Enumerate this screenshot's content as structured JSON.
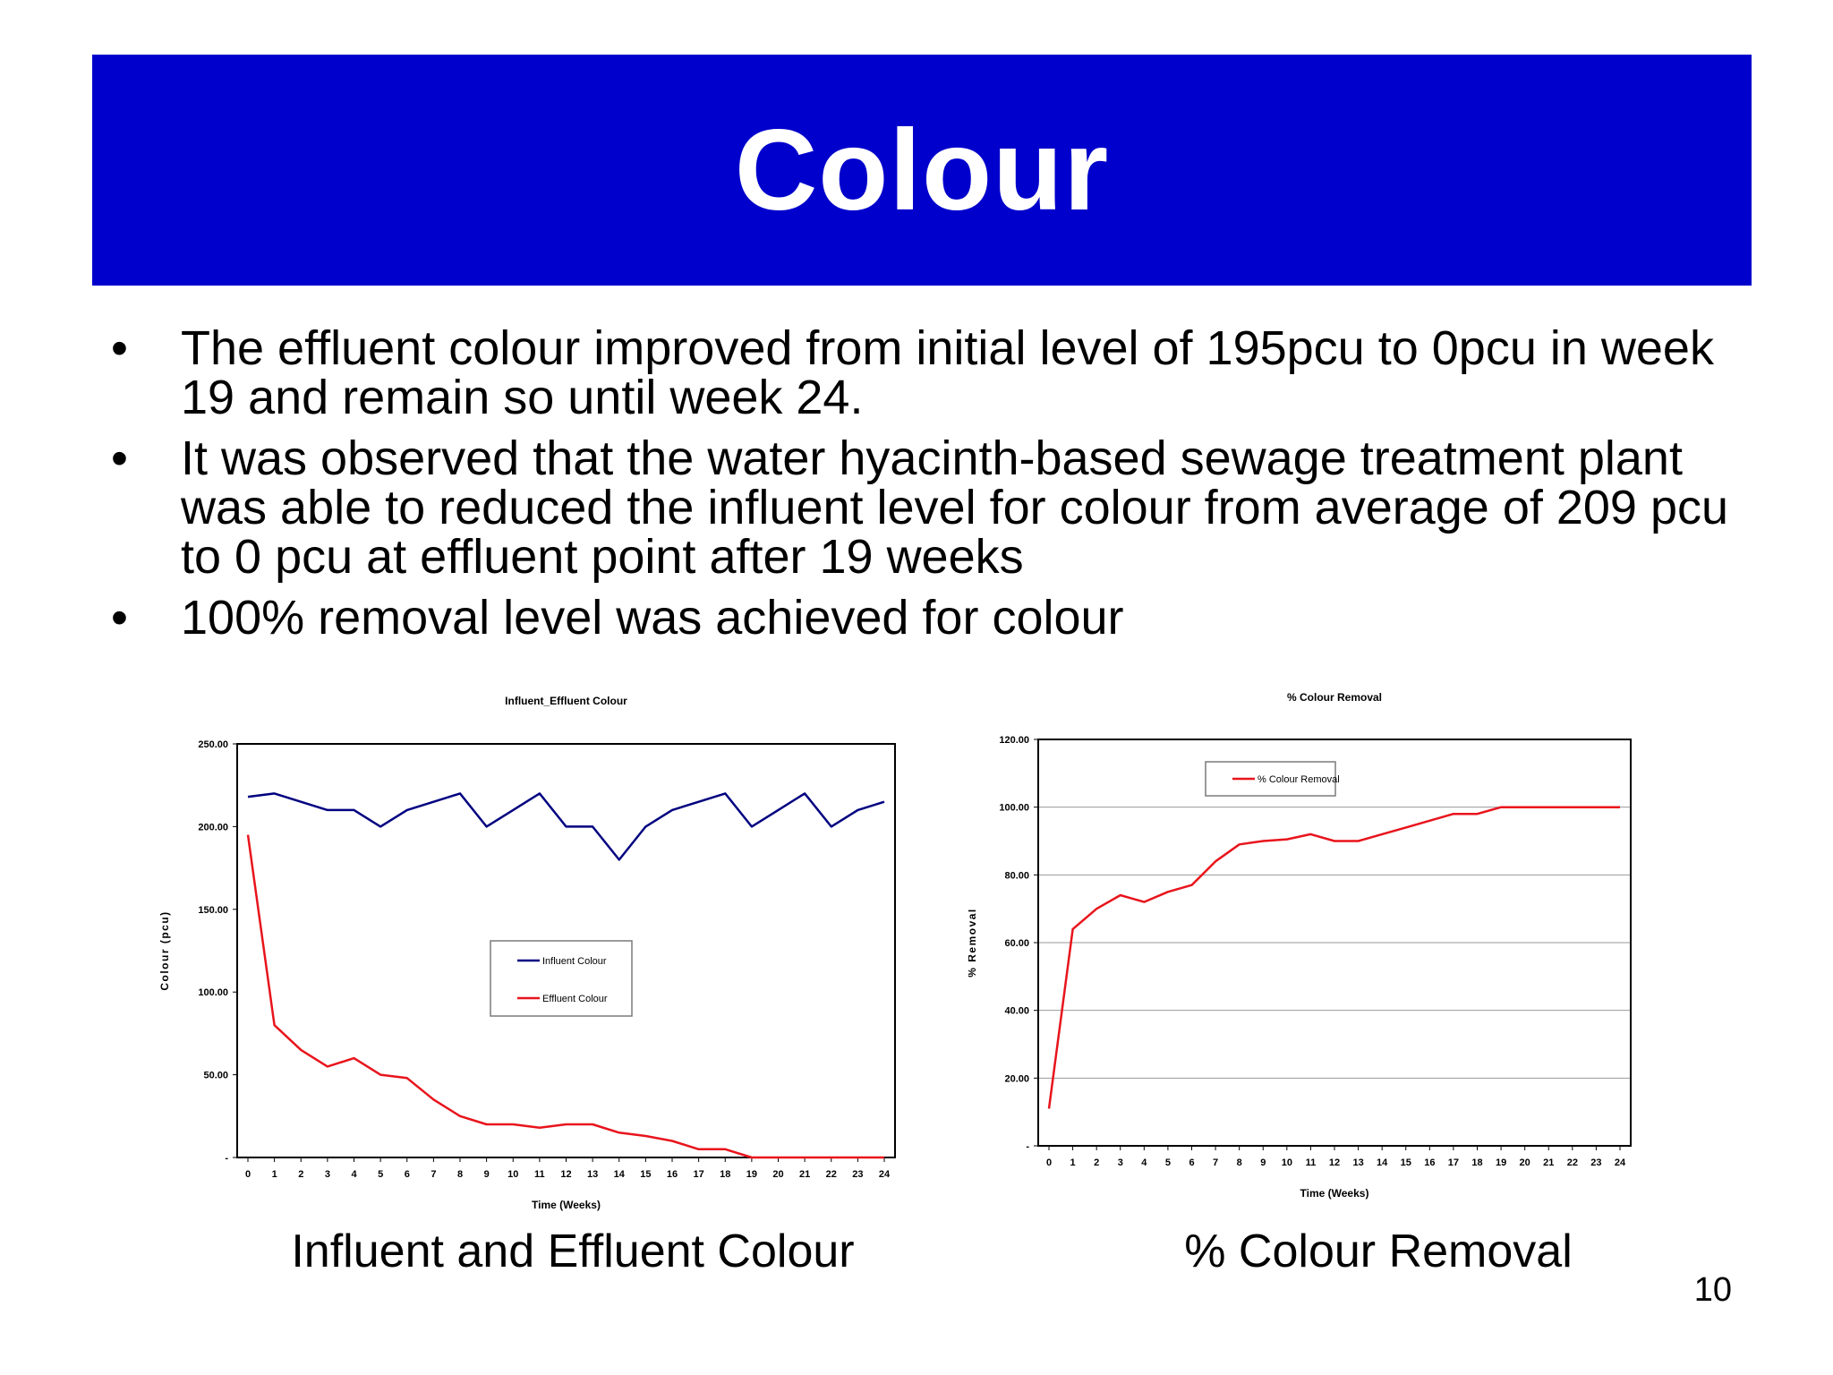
{
  "slide": {
    "title": "Colour",
    "page_number": "10",
    "bullets": [
      "The effluent colour improved from initial level of 195pcu to 0pcu in week 19 and remain so until week 24.",
      "It was observed that the water hyacinth-based sewage treatment plant was able to reduced the influent level for colour from average of 209 pcu to 0 pcu at effluent point after 19 weeks",
      "100% removal level was achieved for colour"
    ],
    "bullet_symbol": "•",
    "captions": {
      "left": "Influent and Effluent Colour",
      "right": "% Colour Removal"
    }
  },
  "chart_data": [
    {
      "type": "line",
      "title": "Influent_Effluent Colour",
      "xlabel": "Time (Weeks)",
      "ylabel": "Colour (pcu)",
      "x": [
        0,
        1,
        2,
        3,
        4,
        5,
        6,
        7,
        8,
        9,
        10,
        11,
        12,
        13,
        14,
        15,
        16,
        17,
        18,
        19,
        20,
        21,
        22,
        23,
        24
      ],
      "ylim": [
        0,
        250
      ],
      "yticks": [
        0,
        50,
        100,
        150,
        200,
        250
      ],
      "ytick_labels": [
        "-",
        "50.00",
        "100.00",
        "150.00",
        "200.00",
        "250.00"
      ],
      "grid": false,
      "legend_position": "center-right",
      "series": [
        {
          "name": "Influent Colour",
          "color": "#000080",
          "values": [
            218,
            220,
            215,
            210,
            210,
            200,
            210,
            215,
            220,
            200,
            210,
            220,
            200,
            200,
            180,
            200,
            210,
            215,
            220,
            200,
            210,
            220,
            200,
            210,
            215
          ]
        },
        {
          "name": "Effluent Colour",
          "color": "#e8141c",
          "values": [
            195,
            80,
            65,
            55,
            60,
            50,
            48,
            35,
            25,
            20,
            20,
            18,
            20,
            20,
            15,
            13,
            10,
            5,
            5,
            0,
            0,
            0,
            0,
            0,
            0
          ]
        }
      ]
    },
    {
      "type": "line",
      "title": "% Colour Removal",
      "xlabel": "Time (Weeks)",
      "ylabel": "% Removal",
      "x": [
        0,
        1,
        2,
        3,
        4,
        5,
        6,
        7,
        8,
        9,
        10,
        11,
        12,
        13,
        14,
        15,
        16,
        17,
        18,
        19,
        20,
        21,
        22,
        23,
        24
      ],
      "ylim": [
        0,
        120
      ],
      "yticks": [
        0,
        20,
        40,
        60,
        80,
        100,
        120
      ],
      "ytick_labels": [
        "-",
        "20.00",
        "40.00",
        "60.00",
        "80.00",
        "100.00",
        "120.00"
      ],
      "grid": true,
      "legend_position": "top-left",
      "series": [
        {
          "name": "% Colour Removal",
          "color": "#e8141c",
          "values": [
            11,
            64,
            70,
            74,
            72,
            75,
            77,
            84,
            89,
            90,
            90.5,
            92,
            90,
            90,
            92,
            94,
            96,
            98,
            98,
            100,
            100,
            100,
            100,
            100,
            100
          ]
        }
      ]
    }
  ]
}
